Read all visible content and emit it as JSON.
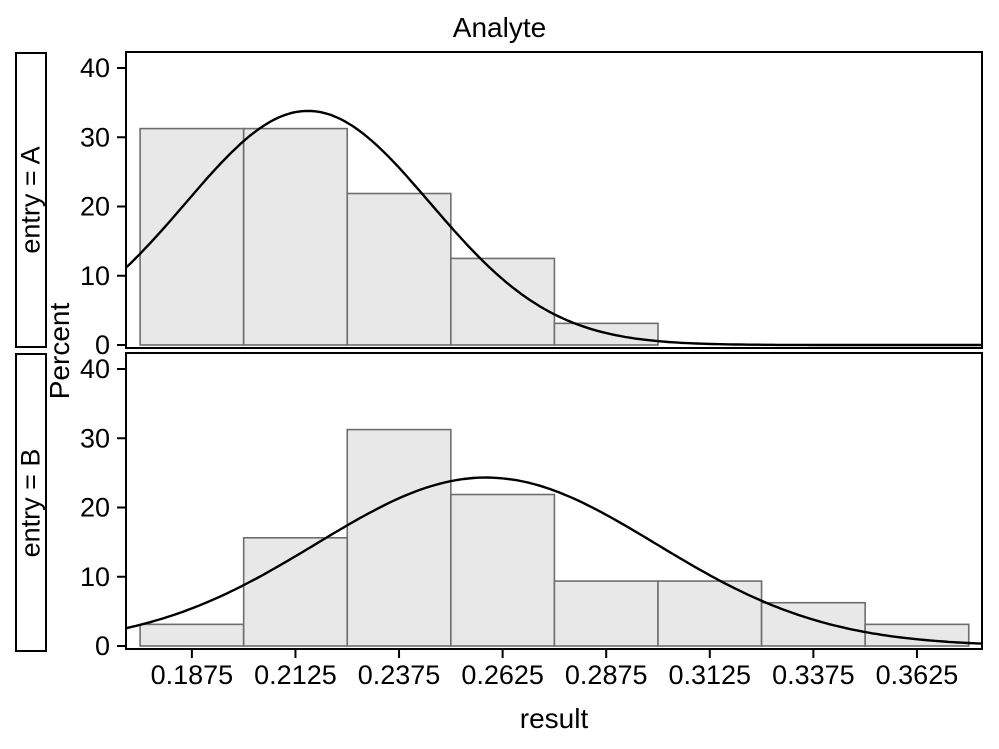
{
  "chart_data": {
    "type": "bar",
    "subtype": "histogram_panel_with_normal_curves",
    "title": "Analyte",
    "xlabel": "result",
    "ylabel": "Percent",
    "bin_width": 0.025,
    "categories": [
      0.1875,
      0.2125,
      0.2375,
      0.2625,
      0.2875,
      0.3125,
      0.3375,
      0.3625
    ],
    "x_tick_labels": [
      "0.1875",
      "0.2125",
      "0.2375",
      "0.2625",
      "0.2875",
      "0.3125",
      "0.3375",
      "0.3625"
    ],
    "y_ticks": [
      0,
      10,
      20,
      30,
      40
    ],
    "y_tick_labels": [
      "0",
      "10",
      "20",
      "30",
      "40"
    ],
    "xlim": [
      0.1716,
      0.3782
    ],
    "ylim": [
      0,
      40
    ],
    "grid": false,
    "legend": "none",
    "series": [
      {
        "name": "entry = A",
        "values": [
          31.25,
          31.25,
          21.875,
          12.5,
          3.125,
          0,
          0,
          0
        ],
        "normal_curve": {
          "mean": 0.2155,
          "sd": 0.0295,
          "peak_percent": 33.8
        }
      },
      {
        "name": "entry = B",
        "values": [
          3.125,
          15.625,
          31.25,
          21.875,
          9.375,
          9.375,
          6.25,
          3.125
        ],
        "normal_curve": {
          "mean": 0.2585,
          "sd": 0.041,
          "peak_percent": 24.3
        }
      }
    ],
    "colors": {
      "background": "#ffffff",
      "bar_fill": "#e8e8e8",
      "bar_stroke": "#6e6e6e",
      "curve": "#000000",
      "frame": "#000000",
      "text": "#000000"
    }
  }
}
